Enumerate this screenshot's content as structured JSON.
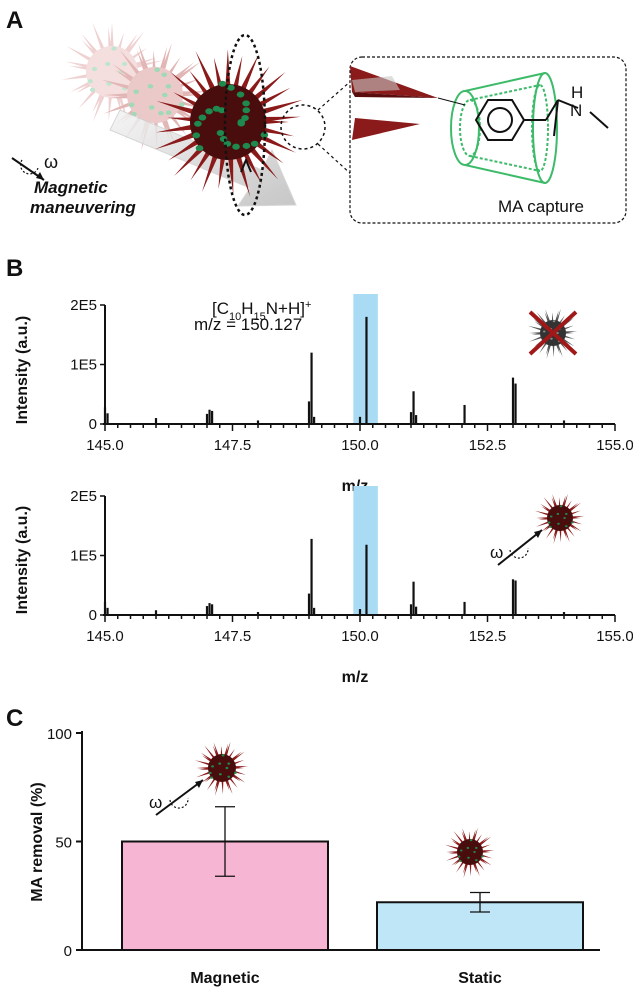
{
  "panels": {
    "a": "A",
    "b": "B",
    "c": "C"
  },
  "panel_a": {
    "omega": "ω",
    "maneuver_label_line1": "Magnetic",
    "maneuver_label_line2": "maneuvering",
    "capture_label": "MA capture",
    "amine_h": "H",
    "amine_n": "N"
  },
  "colors": {
    "spike": "#8b1a1a",
    "bead": "#1e8a4e",
    "cyclodextrin": "#3dbb6a",
    "highlight": "#a9dbf4",
    "bar_magnetic": "#f6b5d2",
    "bar_static": "#bfe6f7"
  },
  "chart_data": [
    {
      "type": "bar",
      "subtype": "mass-spectrum",
      "xlabel": "m/z",
      "ylabel": "Intensity (a.u.)",
      "xlim": [
        145.0,
        155.0
      ],
      "x_ticks": [
        "145.0",
        "147.5",
        "150.0",
        "152.5",
        "155.0"
      ],
      "ylim": [
        0,
        200000
      ],
      "y_ticks": [
        "0",
        "1E5",
        "2E5"
      ],
      "highlight_range": [
        149.87,
        150.35
      ],
      "annotation_formula": "[C10H15N+H]+",
      "annotation_mz": "m/z = 150.127",
      "peaks": [
        {
          "x": 145.0,
          "y": 28000
        },
        {
          "x": 145.05,
          "y": 18000
        },
        {
          "x": 146.0,
          "y": 10000
        },
        {
          "x": 147.0,
          "y": 17000
        },
        {
          "x": 147.05,
          "y": 24000
        },
        {
          "x": 147.1,
          "y": 22000
        },
        {
          "x": 148.0,
          "y": 6000
        },
        {
          "x": 149.0,
          "y": 38000
        },
        {
          "x": 149.05,
          "y": 120000
        },
        {
          "x": 149.1,
          "y": 12000
        },
        {
          "x": 150.0,
          "y": 12000
        },
        {
          "x": 150.127,
          "y": 180000
        },
        {
          "x": 151.0,
          "y": 20000
        },
        {
          "x": 151.05,
          "y": 55000
        },
        {
          "x": 151.1,
          "y": 15000
        },
        {
          "x": 152.05,
          "y": 32000
        },
        {
          "x": 153.0,
          "y": 78000
        },
        {
          "x": 153.05,
          "y": 68000
        },
        {
          "x": 154.0,
          "y": 6000
        }
      ]
    },
    {
      "type": "bar",
      "subtype": "mass-spectrum",
      "xlabel": "m/z",
      "ylabel": "Intensity (a.u.)",
      "xlim": [
        145.0,
        155.0
      ],
      "x_ticks": [
        "145.0",
        "147.5",
        "150.0",
        "152.5",
        "155.0"
      ],
      "ylim": [
        0,
        200000
      ],
      "y_ticks": [
        "0",
        "1E5",
        "2E5"
      ],
      "highlight_range": [
        149.87,
        150.35
      ],
      "peaks": [
        {
          "x": 145.0,
          "y": 22000
        },
        {
          "x": 145.05,
          "y": 12000
        },
        {
          "x": 146.0,
          "y": 8000
        },
        {
          "x": 147.0,
          "y": 15000
        },
        {
          "x": 147.05,
          "y": 20000
        },
        {
          "x": 147.1,
          "y": 18000
        },
        {
          "x": 148.0,
          "y": 5000
        },
        {
          "x": 149.0,
          "y": 36000
        },
        {
          "x": 149.05,
          "y": 128000
        },
        {
          "x": 149.1,
          "y": 12000
        },
        {
          "x": 150.0,
          "y": 10000
        },
        {
          "x": 150.127,
          "y": 118000
        },
        {
          "x": 151.0,
          "y": 18000
        },
        {
          "x": 151.05,
          "y": 56000
        },
        {
          "x": 151.1,
          "y": 14000
        },
        {
          "x": 152.05,
          "y": 22000
        },
        {
          "x": 153.0,
          "y": 60000
        },
        {
          "x": 153.05,
          "y": 58000
        },
        {
          "x": 154.0,
          "y": 5000
        }
      ]
    },
    {
      "type": "bar",
      "categories": [
        "Magnetic",
        "Static"
      ],
      "values": [
        50,
        22
      ],
      "errors": [
        16,
        4.5
      ],
      "ylabel": "MA removal (%)",
      "ylim": [
        0,
        100
      ],
      "y_ticks": [
        "0",
        "50",
        "100"
      ]
    }
  ]
}
